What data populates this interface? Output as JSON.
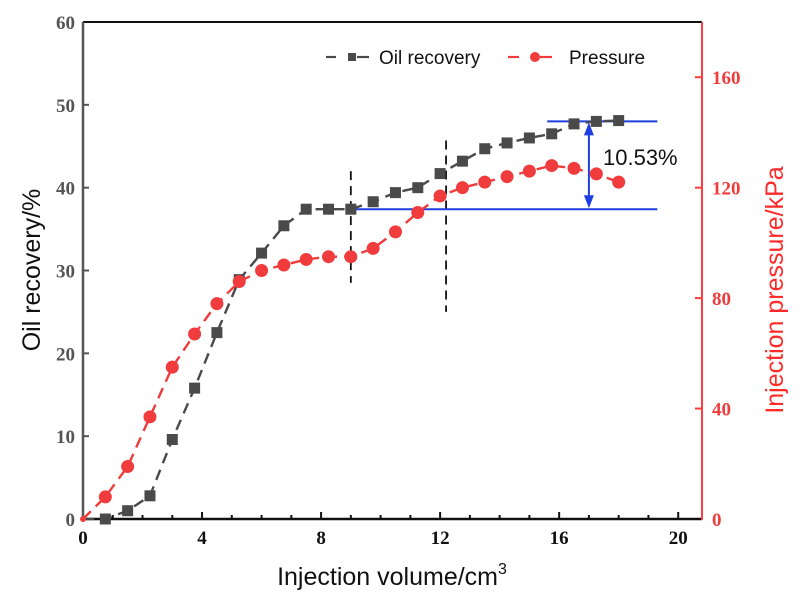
{
  "chart_data": {
    "type": "line",
    "title": "",
    "xlabel": "Injection volume/cm",
    "xlabel_superscript": "3",
    "ylabel": "Oil recovery/%",
    "y2label": "Injection pressure/kPa",
    "xlim": [
      0,
      20.8
    ],
    "ylim": [
      0,
      60
    ],
    "y2lim": [
      0,
      180
    ],
    "xticks": [
      0,
      4,
      8,
      12,
      16,
      20
    ],
    "xticks_labels": [
      "0",
      "4",
      "8",
      "12",
      "16",
      "20"
    ],
    "xminor_step": 1,
    "yticks": [
      0,
      10,
      20,
      30,
      40,
      50,
      60
    ],
    "yticks_labels": [
      "0",
      "10",
      "20",
      "30",
      "40",
      "50",
      "60"
    ],
    "y2ticks": [
      0,
      40,
      80,
      120,
      160
    ],
    "y2ticks_labels": [
      "0",
      "40",
      "80",
      "120",
      "160"
    ],
    "grid": false,
    "legend_position": "top-right",
    "colors": {
      "oil": "#4a4a4a",
      "pressure": "#f03c3c",
      "right_axis": "#ff3b3b",
      "left_axis": "#555555",
      "annotation": "#1f3fe0",
      "divider": "#111111"
    },
    "series": [
      {
        "name": "Oil recovery",
        "axis": "left",
        "marker": "square",
        "line": "dashed",
        "x": [
          0.0,
          0.75,
          1.5,
          2.25,
          3.0,
          3.75,
          4.5,
          5.25,
          6.0,
          6.75,
          7.5,
          8.25,
          9.0,
          9.75,
          10.5,
          11.25,
          12.0,
          12.75,
          13.5,
          14.25,
          15.0,
          15.75,
          16.5,
          17.25,
          18.0
        ],
        "values": [
          0.0,
          0.0,
          1.0,
          2.8,
          9.6,
          15.8,
          22.5,
          28.9,
          32.1,
          35.4,
          37.4,
          37.4,
          37.4,
          38.3,
          39.4,
          40.0,
          41.7,
          43.2,
          44.7,
          45.4,
          46.0,
          46.5,
          47.7,
          48.0,
          48.1
        ]
      },
      {
        "name": "Pressure",
        "axis": "right",
        "marker": "circle",
        "line": "dashed",
        "x": [
          0.0,
          0.75,
          1.5,
          2.25,
          3.0,
          3.75,
          4.5,
          5.25,
          6.0,
          6.75,
          7.5,
          8.25,
          9.0,
          9.75,
          10.5,
          11.25,
          12.0,
          12.75,
          13.5,
          14.25,
          15.0,
          15.75,
          16.5,
          17.25,
          18.0
        ],
        "values": [
          0,
          8,
          19,
          37,
          55,
          67,
          78,
          86,
          90,
          92,
          94,
          95,
          95,
          98,
          104,
          111,
          117,
          120,
          122,
          124,
          126,
          128,
          127,
          125,
          122
        ]
      }
    ],
    "annotations": {
      "vertical_dividers_x": [
        9.0,
        12.2
      ],
      "divider_ranges": [
        [
          28.5,
          42.0
        ],
        [
          25.0,
          45.7
        ]
      ],
      "baseline_level": 37.4,
      "baseline_x_range": [
        9.0,
        19.3
      ],
      "top_level": 48.0,
      "top_x_range": [
        15.6,
        19.3
      ],
      "arrow_x": 17.0,
      "label": "10.53%"
    },
    "legend": [
      {
        "label": "Oil recovery",
        "marker": "square"
      },
      {
        "label": "Pressure",
        "marker": "circle"
      }
    ]
  }
}
